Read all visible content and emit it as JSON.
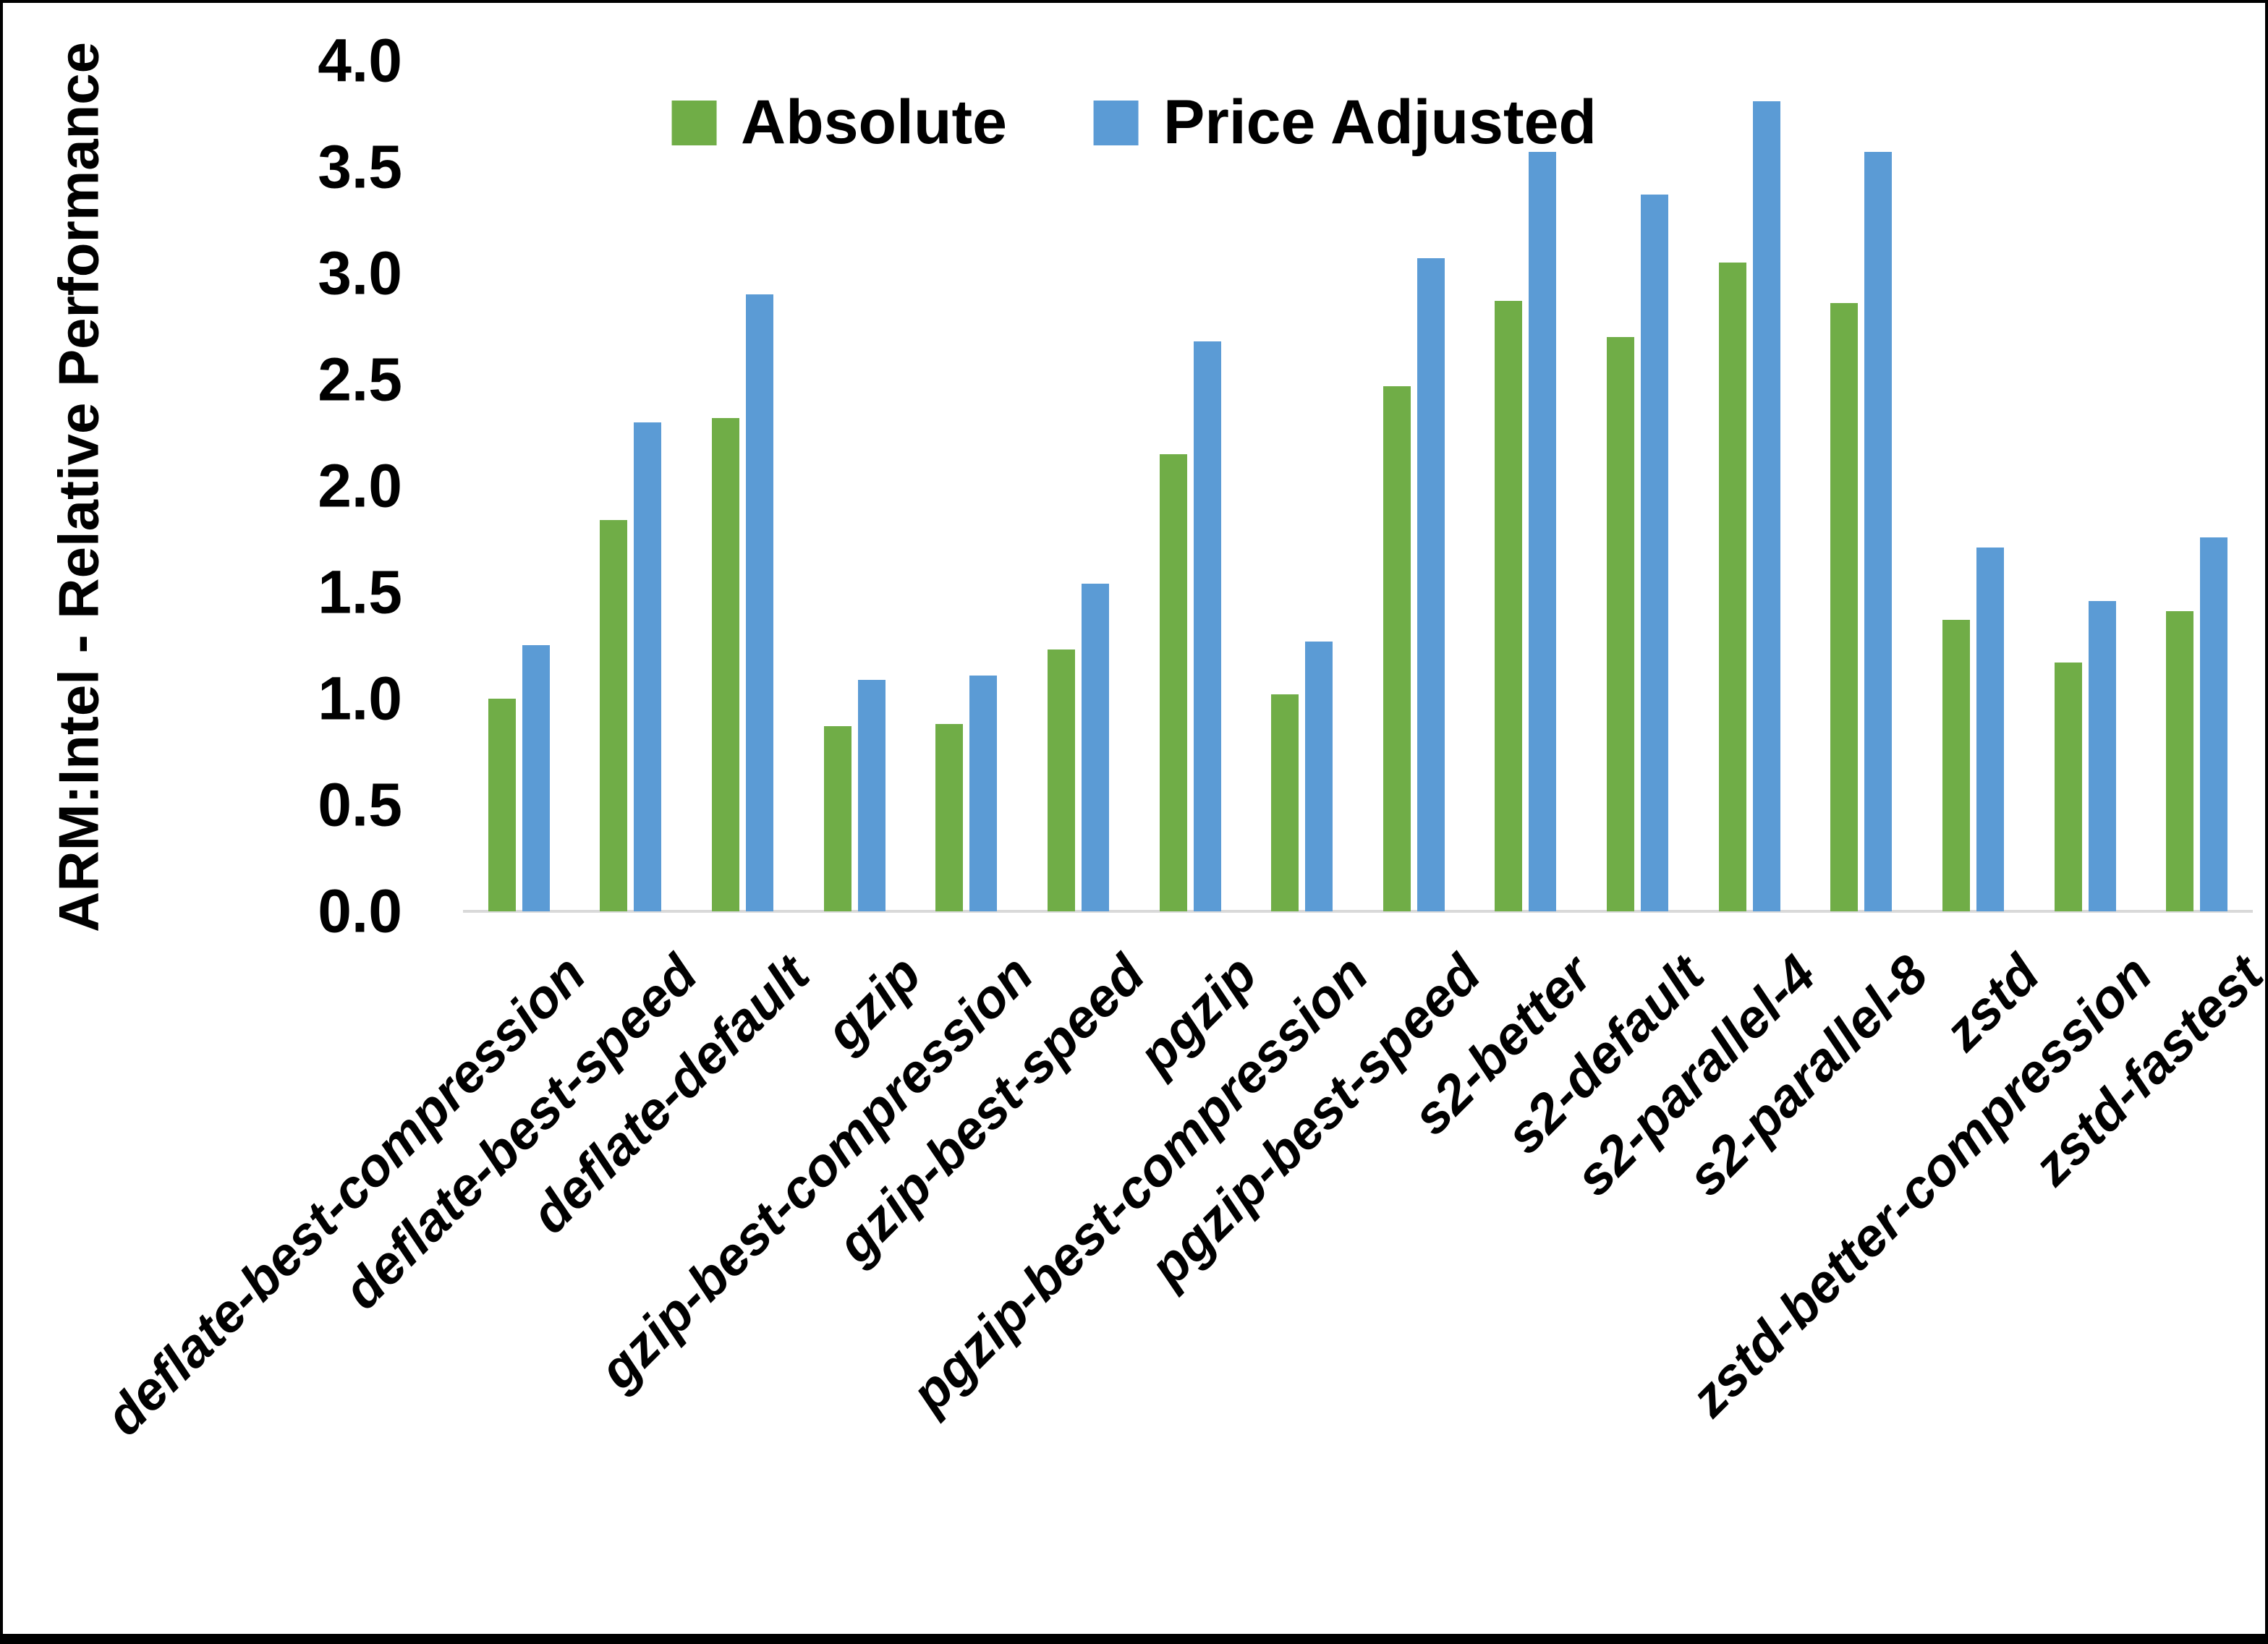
{
  "page": {
    "y_axis_title": "ARM:Intel - Relative Performance"
  },
  "legend": {
    "items": [
      {
        "label": "Absolute",
        "color": "#70AD47"
      },
      {
        "label": "Price Adjusted",
        "color": "#5B9BD5"
      }
    ]
  },
  "chart_data": {
    "type": "bar",
    "title": "",
    "xlabel": "",
    "ylabel": "ARM:Intel - Relative Performance",
    "ylim": [
      0.0,
      4.0
    ],
    "ytick_step": 0.5,
    "grid": false,
    "legend_position": "top-center",
    "categories": [
      "deflate-best-compression",
      "deflate-best-speed",
      "deflate-default",
      "gzip",
      "gzip-best-compression",
      "gzip-best-speed",
      "pgzip",
      "pgzip-best-compression",
      "pgzip-best-speed",
      "s2-better",
      "s2-default",
      "s2-parallel-4",
      "s2-parallel-8",
      "zstd",
      "zstd-better-compression",
      "zstd-fastest"
    ],
    "series": [
      {
        "name": "Absolute",
        "color": "#70AD47",
        "values": [
          1.0,
          1.84,
          2.32,
          0.87,
          0.88,
          1.23,
          2.15,
          1.02,
          2.47,
          2.87,
          2.7,
          3.05,
          2.86,
          1.37,
          1.17,
          1.41
        ]
      },
      {
        "name": "Price Adjusted",
        "color": "#5B9BD5",
        "values": [
          1.25,
          2.3,
          2.9,
          1.09,
          1.11,
          1.54,
          2.68,
          1.27,
          3.07,
          3.57,
          3.37,
          3.81,
          3.57,
          1.71,
          1.46,
          1.76
        ]
      }
    ]
  }
}
